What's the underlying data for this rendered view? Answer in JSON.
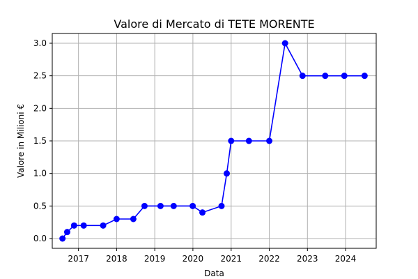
{
  "chart_data": {
    "type": "line",
    "title": "Valore di Mercato di TETE MORENTE",
    "xlabel": "Data",
    "ylabel": "Valore in Milioni €",
    "x_type": "date",
    "xlim": [
      "2016-04-25",
      "2024-10-20"
    ],
    "ylim": [
      -0.15,
      3.15
    ],
    "grid": true,
    "x_ticks": [
      {
        "date": "2017-01-01",
        "label": "2017"
      },
      {
        "date": "2018-01-01",
        "label": "2018"
      },
      {
        "date": "2019-01-01",
        "label": "2019"
      },
      {
        "date": "2020-01-01",
        "label": "2020"
      },
      {
        "date": "2021-01-01",
        "label": "2021"
      },
      {
        "date": "2022-01-01",
        "label": "2022"
      },
      {
        "date": "2023-01-01",
        "label": "2023"
      },
      {
        "date": "2024-01-01",
        "label": "2024"
      }
    ],
    "y_ticks": [
      {
        "value": 0.0,
        "label": "0.0"
      },
      {
        "value": 0.5,
        "label": "0.5"
      },
      {
        "value": 1.0,
        "label": "1.0"
      },
      {
        "value": 1.5,
        "label": "1.5"
      },
      {
        "value": 2.0,
        "label": "2.0"
      },
      {
        "value": 2.5,
        "label": "2.5"
      },
      {
        "value": 3.0,
        "label": "3.0"
      }
    ],
    "series": [
      {
        "color": "#0000ff",
        "marker": "circle",
        "points": [
          {
            "x": "2016-08-01",
            "y": 0.0
          },
          {
            "x": "2016-09-15",
            "y": 0.1
          },
          {
            "x": "2016-11-20",
            "y": 0.2
          },
          {
            "x": "2017-02-20",
            "y": 0.2
          },
          {
            "x": "2017-08-25",
            "y": 0.2
          },
          {
            "x": "2018-01-01",
            "y": 0.3
          },
          {
            "x": "2018-06-10",
            "y": 0.3
          },
          {
            "x": "2018-09-25",
            "y": 0.5
          },
          {
            "x": "2019-02-25",
            "y": 0.5
          },
          {
            "x": "2019-07-01",
            "y": 0.5
          },
          {
            "x": "2019-12-30",
            "y": 0.5
          },
          {
            "x": "2020-04-01",
            "y": 0.4
          },
          {
            "x": "2020-10-01",
            "y": 0.5
          },
          {
            "x": "2020-11-20",
            "y": 1.0
          },
          {
            "x": "2021-01-01",
            "y": 1.5
          },
          {
            "x": "2021-06-20",
            "y": 1.5
          },
          {
            "x": "2022-01-01",
            "y": 1.5
          },
          {
            "x": "2022-06-01",
            "y": 3.0
          },
          {
            "x": "2022-11-15",
            "y": 2.5
          },
          {
            "x": "2023-06-20",
            "y": 2.5
          },
          {
            "x": "2023-12-20",
            "y": 2.5
          },
          {
            "x": "2024-07-01",
            "y": 2.5
          }
        ]
      }
    ]
  }
}
